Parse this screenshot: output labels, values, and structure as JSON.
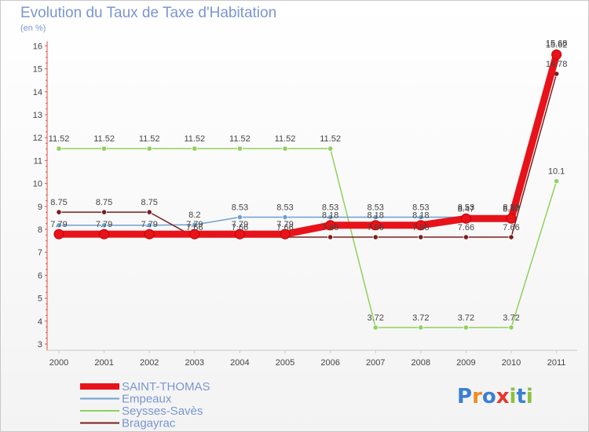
{
  "header": {
    "title": "Evolution du Taux de Taxe d'Habitation",
    "subtitle": "(en %)"
  },
  "logo": {
    "text": "Proxiti",
    "letters": [
      "P",
      "r",
      "o",
      "x",
      "i",
      "t",
      "i"
    ],
    "colors": [
      "#3a7fd5",
      "#f08c1e",
      "#3a7fd5",
      "#e8362d",
      "#8ac13d",
      "#3a7fd5",
      "#8ac13d"
    ]
  },
  "chart_data": {
    "type": "line",
    "title": "Evolution du Taux de Taxe d'Habitation",
    "ylabel": "(en %)",
    "xlabel": "",
    "categories": [
      "2000",
      "2001",
      "2002",
      "2003",
      "2004",
      "2005",
      "2006",
      "2007",
      "2008",
      "2009",
      "2010",
      "2011"
    ],
    "ylim": [
      3,
      16
    ],
    "yticks": [
      3,
      4,
      5,
      6,
      7,
      8,
      9,
      10,
      11,
      12,
      13,
      14,
      15,
      16
    ],
    "grid": false,
    "legend_position": "bottom-left",
    "series": [
      {
        "name": "Seysses-Savès",
        "color": "#8fd15d",
        "values": [
          11.52,
          11.52,
          11.52,
          11.52,
          11.52,
          11.52,
          11.52,
          3.72,
          3.72,
          3.72,
          3.72,
          10.1
        ],
        "labels": [
          "11.52",
          "11.52",
          "11.52",
          "11.52",
          "11.52",
          "11.52",
          "11.52",
          "3.72",
          "3.72",
          "3.72",
          "3.72",
          "10.1"
        ]
      },
      {
        "name": "Empeaux",
        "color": "#6e9fd0",
        "values": [
          8.18,
          8.18,
          8.18,
          8.2,
          8.53,
          8.53,
          8.53,
          8.53,
          8.53,
          8.53,
          8.53,
          15.68
        ],
        "labels": [
          "",
          "",
          "",
          "8.2",
          "8.53",
          "8.53",
          "8.53",
          "8.53",
          "8.53",
          "8.53",
          "8.53",
          "15.68"
        ]
      },
      {
        "name": "Bragayrac",
        "color": "#7a1e1e",
        "values": [
          8.75,
          8.75,
          8.75,
          7.66,
          7.66,
          7.66,
          7.66,
          7.66,
          7.66,
          7.66,
          7.66,
          14.78
        ],
        "labels": [
          "8.75",
          "8.75",
          "8.75",
          "7.66",
          "7.66",
          "7.66",
          "7.66",
          "7.66",
          "7.66",
          "7.66",
          "7.66",
          "14.78"
        ]
      },
      {
        "name": "SAINT-THOMAS",
        "color": "#e8131a",
        "values": [
          7.79,
          7.79,
          7.79,
          7.79,
          7.79,
          7.79,
          8.18,
          8.18,
          8.18,
          8.47,
          8.47,
          15.62
        ],
        "labels": [
          "7.79",
          "7.79",
          "7.79",
          "7.79",
          "7.79",
          "7.79",
          "8.18",
          "8.18",
          "8.18",
          "8.47",
          "8.47",
          "15.62"
        ]
      }
    ]
  }
}
